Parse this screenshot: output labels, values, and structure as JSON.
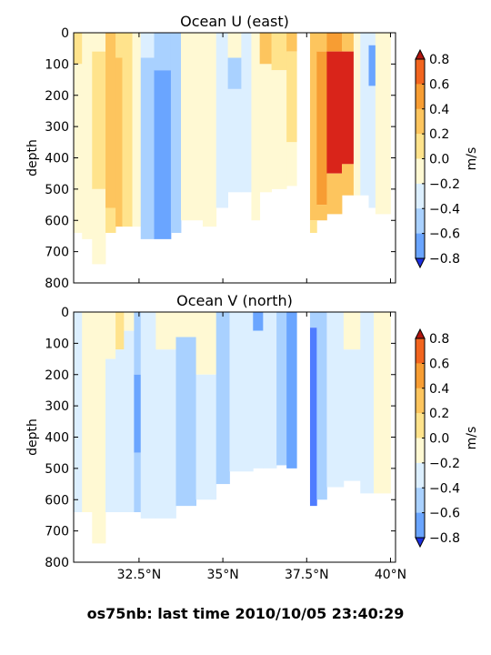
{
  "figure_title": "os75nb: last time 2010/10/05 23:40:29",
  "palette": {
    "level_colors": [
      "#2e4dff",
      "#4f7cff",
      "#6aa5ff",
      "#a9d1ff",
      "#dcefff",
      "#fff9d3",
      "#ffe38c",
      "#fdc55e",
      "#f79d33",
      "#f2651f",
      "#d9241a"
    ],
    "ext_low": "#1c2fe0",
    "ext_high": "#b2150f"
  },
  "chart_data": [
    {
      "type": "heatmap",
      "title": "Ocean U (east)",
      "ylabel": "depth",
      "ylim": [
        800,
        0
      ],
      "yticks": [
        0,
        100,
        200,
        300,
        400,
        500,
        600,
        700,
        800
      ],
      "xlim": [
        30.55,
        40.15
      ],
      "xticks": [
        32.5,
        35.0,
        37.5,
        40.0
      ],
      "xtick_labels": [
        "32.5°N",
        "35°N",
        "37.5°N",
        "40°N"
      ],
      "show_xtick_labels": false,
      "colorbar": {
        "label": "m/s",
        "ticks": [
          0.8,
          0.6,
          0.4,
          0.2,
          0.0,
          -0.2,
          -0.4,
          -0.6,
          -0.8
        ],
        "tick_labels": [
          "0.8",
          "0.6",
          "0.4",
          "0.2",
          "0.0",
          "−0.2",
          "−0.4",
          "−0.6",
          "−0.8"
        ],
        "levels": [
          -0.9,
          -0.6,
          -0.4,
          -0.2,
          0.0,
          0.2,
          0.4,
          0.6,
          0.8
        ]
      },
      "columns": [
        {
          "lat_min": 30.55,
          "lat_max": 30.8,
          "depth_max": 640,
          "bands": [
            {
              "d0": 0,
              "d1": 100,
              "v": 0.3
            },
            {
              "d0": 100,
              "d1": 640,
              "v": 0.1
            }
          ]
        },
        {
          "lat_min": 30.8,
          "lat_max": 31.1,
          "depth_max": 660,
          "bands": [
            {
              "d0": 0,
              "d1": 660,
              "v": 0.1
            }
          ]
        },
        {
          "lat_min": 31.1,
          "lat_max": 31.5,
          "depth_max": 740,
          "bands": [
            {
              "d0": 0,
              "d1": 60,
              "v": 0.1
            },
            {
              "d0": 60,
              "d1": 500,
              "v": 0.3
            },
            {
              "d0": 500,
              "d1": 740,
              "v": 0.1
            }
          ]
        },
        {
          "lat_min": 31.5,
          "lat_max": 31.8,
          "depth_max": 640,
          "bands": [
            {
              "d0": 0,
              "d1": 560,
              "v": 0.55
            },
            {
              "d0": 560,
              "d1": 640,
              "v": 0.3
            }
          ]
        },
        {
          "lat_min": 31.8,
          "lat_max": 32.0,
          "depth_max": 620,
          "bands": [
            {
              "d0": 0,
              "d1": 80,
              "v": 0.3
            },
            {
              "d0": 80,
              "d1": 620,
              "v": 0.45
            }
          ]
        },
        {
          "lat_min": 32.0,
          "lat_max": 32.3,
          "depth_max": 620,
          "bands": [
            {
              "d0": 0,
              "d1": 620,
              "v": 0.3
            }
          ]
        },
        {
          "lat_min": 32.3,
          "lat_max": 32.55,
          "depth_max": 620,
          "bands": [
            {
              "d0": 0,
              "d1": 620,
              "v": 0.1
            }
          ]
        },
        {
          "lat_min": 32.55,
          "lat_max": 32.95,
          "depth_max": 660,
          "bands": [
            {
              "d0": 0,
              "d1": 80,
              "v": -0.1
            },
            {
              "d0": 80,
              "d1": 660,
              "v": -0.3
            }
          ]
        },
        {
          "lat_min": 32.95,
          "lat_max": 33.45,
          "depth_max": 660,
          "bands": [
            {
              "d0": 0,
              "d1": 120,
              "v": -0.3
            },
            {
              "d0": 120,
              "d1": 660,
              "v": -0.5
            }
          ]
        },
        {
          "lat_min": 33.45,
          "lat_max": 33.75,
          "depth_max": 640,
          "bands": [
            {
              "d0": 0,
              "d1": 640,
              "v": -0.3
            }
          ]
        },
        {
          "lat_min": 33.75,
          "lat_max": 34.4,
          "depth_max": 600,
          "bands": [
            {
              "d0": 0,
              "d1": 600,
              "v": 0.1
            }
          ]
        },
        {
          "lat_min": 34.4,
          "lat_max": 34.8,
          "depth_max": 620,
          "bands": [
            {
              "d0": 0,
              "d1": 620,
              "v": 0.1
            }
          ]
        },
        {
          "lat_min": 34.8,
          "lat_max": 35.15,
          "depth_max": 560,
          "bands": [
            {
              "d0": 0,
              "d1": 560,
              "v": -0.1
            }
          ]
        },
        {
          "lat_min": 35.15,
          "lat_max": 35.55,
          "depth_max": 510,
          "bands": [
            {
              "d0": 0,
              "d1": 80,
              "v": 0.1
            },
            {
              "d0": 80,
              "d1": 180,
              "v": -0.3
            },
            {
              "d0": 180,
              "d1": 510,
              "v": -0.1
            }
          ]
        },
        {
          "lat_min": 35.55,
          "lat_max": 35.85,
          "depth_max": 510,
          "bands": [
            {
              "d0": 0,
              "d1": 510,
              "v": -0.1
            }
          ]
        },
        {
          "lat_min": 35.85,
          "lat_max": 36.1,
          "depth_max": 600,
          "bands": [
            {
              "d0": 0,
              "d1": 600,
              "v": 0.1
            }
          ]
        },
        {
          "lat_min": 36.1,
          "lat_max": 36.45,
          "depth_max": 510,
          "bands": [
            {
              "d0": 0,
              "d1": 100,
              "v": 0.5
            },
            {
              "d0": 100,
              "d1": 510,
              "v": 0.1
            }
          ]
        },
        {
          "lat_min": 36.45,
          "lat_max": 36.9,
          "depth_max": 500,
          "bands": [
            {
              "d0": 0,
              "d1": 120,
              "v": 0.3
            },
            {
              "d0": 120,
              "d1": 500,
              "v": 0.1
            }
          ]
        },
        {
          "lat_min": 36.9,
          "lat_max": 37.2,
          "depth_max": 490,
          "bands": [
            {
              "d0": 0,
              "d1": 60,
              "v": 0.5
            },
            {
              "d0": 60,
              "d1": 350,
              "v": 0.3
            },
            {
              "d0": 350,
              "d1": 490,
              "v": 0.1
            }
          ]
        },
        {
          "lat_min": 37.6,
          "lat_max": 37.8,
          "depth_max": 640,
          "bands": [
            {
              "d0": 0,
              "d1": 600,
              "v": 0.5
            },
            {
              "d0": 600,
              "d1": 640,
              "v": 0.3
            }
          ]
        },
        {
          "lat_min": 37.8,
          "lat_max": 38.1,
          "depth_max": 600,
          "bands": [
            {
              "d0": 0,
              "d1": 60,
              "v": 0.55
            },
            {
              "d0": 60,
              "d1": 550,
              "v": 0.7
            },
            {
              "d0": 550,
              "d1": 600,
              "v": 0.5
            }
          ]
        },
        {
          "lat_min": 38.1,
          "lat_max": 38.55,
          "depth_max": 580,
          "bands": [
            {
              "d0": 0,
              "d1": 60,
              "v": 0.7
            },
            {
              "d0": 60,
              "d1": 450,
              "v": 0.85
            },
            {
              "d0": 450,
              "d1": 580,
              "v": 0.55
            }
          ]
        },
        {
          "lat_min": 38.55,
          "lat_max": 38.9,
          "depth_max": 520,
          "bands": [
            {
              "d0": 0,
              "d1": 60,
              "v": 0.5
            },
            {
              "d0": 60,
              "d1": 420,
              "v": 0.85
            },
            {
              "d0": 420,
              "d1": 520,
              "v": 0.5
            }
          ]
        },
        {
          "lat_min": 38.9,
          "lat_max": 39.1,
          "depth_max": 520,
          "bands": [
            {
              "d0": 0,
              "d1": 520,
              "v": 0.1
            }
          ]
        },
        {
          "lat_min": 39.1,
          "lat_max": 39.35,
          "depth_max": 520,
          "bands": [
            {
              "d0": 0,
              "d1": 520,
              "v": -0.1
            }
          ]
        },
        {
          "lat_min": 39.35,
          "lat_max": 39.55,
          "depth_max": 560,
          "bands": [
            {
              "d0": 0,
              "d1": 40,
              "v": -0.1
            },
            {
              "d0": 40,
              "d1": 170,
              "v": -0.5
            },
            {
              "d0": 170,
              "d1": 560,
              "v": -0.1
            }
          ]
        },
        {
          "lat_min": 39.55,
          "lat_max": 40.0,
          "depth_max": 580,
          "bands": [
            {
              "d0": 0,
              "d1": 580,
              "v": 0.1
            }
          ]
        }
      ]
    },
    {
      "type": "heatmap",
      "title": "Ocean V (north)",
      "ylabel": "depth",
      "ylim": [
        800,
        0
      ],
      "yticks": [
        0,
        100,
        200,
        300,
        400,
        500,
        600,
        700,
        800
      ],
      "xlim": [
        30.55,
        40.15
      ],
      "xticks": [
        32.5,
        35.0,
        37.5,
        40.0
      ],
      "xtick_labels": [
        "32.5°N",
        "35°N",
        "37.5°N",
        "40°N"
      ],
      "show_xtick_labels": true,
      "colorbar": {
        "label": "m/s",
        "ticks": [
          0.8,
          0.6,
          0.4,
          0.2,
          0.0,
          -0.2,
          -0.4,
          -0.6,
          -0.8
        ],
        "tick_labels": [
          "0.8",
          "0.6",
          "0.4",
          "0.2",
          "0.0",
          "−0.2",
          "−0.4",
          "−0.6",
          "−0.8"
        ],
        "levels": [
          -0.9,
          -0.6,
          -0.4,
          -0.2,
          0.0,
          0.2,
          0.4,
          0.6,
          0.8
        ]
      },
      "columns": [
        {
          "lat_min": 30.55,
          "lat_max": 30.8,
          "depth_max": 640,
          "bands": [
            {
              "d0": 0,
              "d1": 640,
              "v": -0.1
            }
          ]
        },
        {
          "lat_min": 30.8,
          "lat_max": 31.1,
          "depth_max": 640,
          "bands": [
            {
              "d0": 0,
              "d1": 640,
              "v": 0.1
            }
          ]
        },
        {
          "lat_min": 31.1,
          "lat_max": 31.5,
          "depth_max": 740,
          "bands": [
            {
              "d0": 0,
              "d1": 740,
              "v": 0.1
            }
          ]
        },
        {
          "lat_min": 31.5,
          "lat_max": 31.8,
          "depth_max": 640,
          "bands": [
            {
              "d0": 0,
              "d1": 150,
              "v": 0.1
            },
            {
              "d0": 150,
              "d1": 640,
              "v": -0.1
            }
          ]
        },
        {
          "lat_min": 31.8,
          "lat_max": 32.05,
          "depth_max": 640,
          "bands": [
            {
              "d0": 0,
              "d1": 120,
              "v": 0.3
            },
            {
              "d0": 120,
              "d1": 640,
              "v": -0.1
            }
          ]
        },
        {
          "lat_min": 32.05,
          "lat_max": 32.35,
          "depth_max": 640,
          "bands": [
            {
              "d0": 0,
              "d1": 60,
              "v": 0.1
            },
            {
              "d0": 60,
              "d1": 640,
              "v": -0.1
            }
          ]
        },
        {
          "lat_min": 32.35,
          "lat_max": 32.55,
          "depth_max": 640,
          "bands": [
            {
              "d0": 0,
              "d1": 200,
              "v": -0.3
            },
            {
              "d0": 200,
              "d1": 450,
              "v": -0.5
            },
            {
              "d0": 450,
              "d1": 640,
              "v": -0.3
            }
          ]
        },
        {
          "lat_min": 32.55,
          "lat_max": 33.0,
          "depth_max": 660,
          "bands": [
            {
              "d0": 0,
              "d1": 660,
              "v": -0.1
            }
          ]
        },
        {
          "lat_min": 33.0,
          "lat_max": 33.6,
          "depth_max": 660,
          "bands": [
            {
              "d0": 0,
              "d1": 120,
              "v": 0.1
            },
            {
              "d0": 120,
              "d1": 660,
              "v": -0.1
            }
          ]
        },
        {
          "lat_min": 33.6,
          "lat_max": 34.2,
          "depth_max": 620,
          "bands": [
            {
              "d0": 0,
              "d1": 80,
              "v": 0.1
            },
            {
              "d0": 80,
              "d1": 620,
              "v": -0.3
            }
          ]
        },
        {
          "lat_min": 34.2,
          "lat_max": 34.8,
          "depth_max": 600,
          "bands": [
            {
              "d0": 0,
              "d1": 200,
              "v": 0.1
            },
            {
              "d0": 200,
              "d1": 600,
              "v": -0.1
            }
          ]
        },
        {
          "lat_min": 34.8,
          "lat_max": 35.2,
          "depth_max": 550,
          "bands": [
            {
              "d0": 0,
              "d1": 550,
              "v": -0.3
            }
          ]
        },
        {
          "lat_min": 35.2,
          "lat_max": 35.9,
          "depth_max": 510,
          "bands": [
            {
              "d0": 0,
              "d1": 510,
              "v": -0.1
            }
          ]
        },
        {
          "lat_min": 35.9,
          "lat_max": 36.2,
          "depth_max": 500,
          "bands": [
            {
              "d0": 0,
              "d1": 60,
              "v": -0.6
            },
            {
              "d0": 60,
              "d1": 500,
              "v": -0.1
            }
          ]
        },
        {
          "lat_min": 36.2,
          "lat_max": 36.6,
          "depth_max": 500,
          "bands": [
            {
              "d0": 0,
              "d1": 500,
              "v": -0.1
            }
          ]
        },
        {
          "lat_min": 36.6,
          "lat_max": 36.9,
          "depth_max": 490,
          "bands": [
            {
              "d0": 0,
              "d1": 490,
              "v": -0.3
            }
          ]
        },
        {
          "lat_min": 36.9,
          "lat_max": 37.2,
          "depth_max": 500,
          "bands": [
            {
              "d0": 0,
              "d1": 500,
              "v": -0.5
            }
          ]
        },
        {
          "lat_min": 37.6,
          "lat_max": 37.8,
          "depth_max": 620,
          "bands": [
            {
              "d0": 0,
              "d1": 50,
              "v": -0.3
            },
            {
              "d0": 50,
              "d1": 620,
              "v": -0.75
            }
          ]
        },
        {
          "lat_min": 37.8,
          "lat_max": 38.1,
          "depth_max": 600,
          "bands": [
            {
              "d0": 0,
              "d1": 600,
              "v": -0.3
            }
          ]
        },
        {
          "lat_min": 38.1,
          "lat_max": 38.6,
          "depth_max": 560,
          "bands": [
            {
              "d0": 0,
              "d1": 560,
              "v": -0.1
            }
          ]
        },
        {
          "lat_min": 38.6,
          "lat_max": 39.1,
          "depth_max": 540,
          "bands": [
            {
              "d0": 0,
              "d1": 120,
              "v": 0.1
            },
            {
              "d0": 120,
              "d1": 540,
              "v": -0.1
            }
          ]
        },
        {
          "lat_min": 39.1,
          "lat_max": 39.5,
          "depth_max": 580,
          "bands": [
            {
              "d0": 0,
              "d1": 580,
              "v": -0.1
            }
          ]
        },
        {
          "lat_min": 39.5,
          "lat_max": 40.0,
          "depth_max": 580,
          "bands": [
            {
              "d0": 0,
              "d1": 580,
              "v": 0.1
            }
          ]
        }
      ]
    }
  ]
}
